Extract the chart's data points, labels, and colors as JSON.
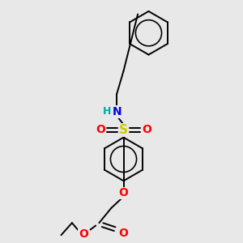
{
  "background_color": "#e8e8e8",
  "bond_color": "#000000",
  "atom_colors": {
    "N": "#0000ee",
    "O": "#ff0000",
    "S": "#cccc00",
    "H": "#00aaaa",
    "C": "#000000"
  },
  "figsize": [
    3.0,
    3.0
  ],
  "dpi": 100,
  "lw": 1.4
}
